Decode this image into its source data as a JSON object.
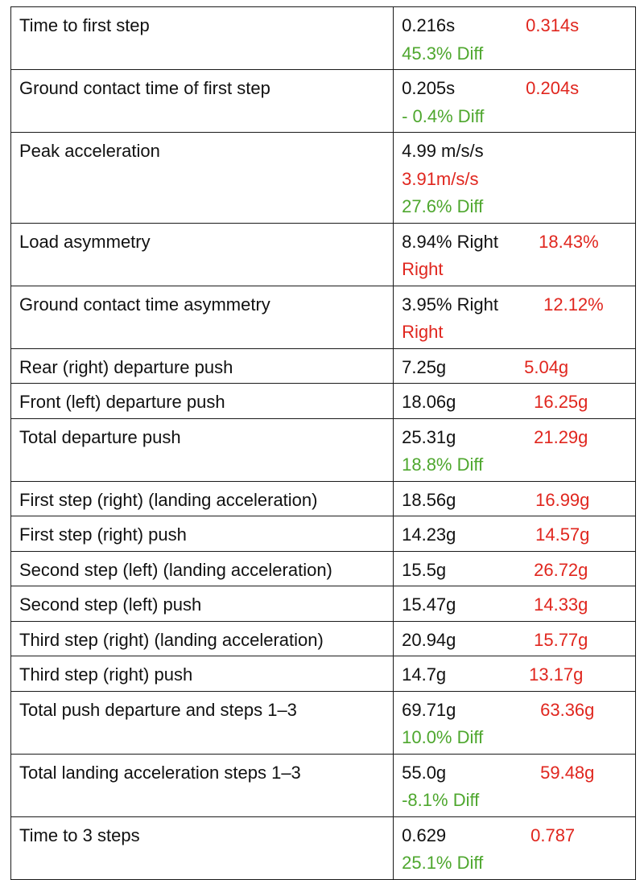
{
  "colors": {
    "comparison": "#e0261e",
    "difference": "#4ea72e",
    "text": "#111111"
  },
  "rows": [
    {
      "label": "Time to first step",
      "value_a": "0.216s",
      "value_b": "0.314s",
      "diff": "45.3% Diff"
    },
    {
      "label": "Ground contact time of first step",
      "value_a": "0.205s",
      "value_b": "0.204s",
      "diff": "- 0.4% Diff"
    },
    {
      "label": "Peak acceleration",
      "value_a": "4.99 m/s/s",
      "value_b": "3.91m/s/s",
      "diff": "27.6% Diff"
    },
    {
      "label": "Load asymmetry",
      "value_a": "8.94% Right",
      "value_b": "18.43%",
      "value_b_wrap": "Right"
    },
    {
      "label": "Ground contact time asymmetry",
      "value_a": "3.95% Right",
      "value_b": "12.12%",
      "value_b_wrap": "Right"
    },
    {
      "label": "Rear (right) departure push",
      "value_a": "7.25g",
      "value_b": "5.04g"
    },
    {
      "label": "Front (left) departure push",
      "value_a": "18.06g",
      "value_b": "16.25g"
    },
    {
      "label": "Total departure push",
      "value_a": "25.31g",
      "value_b": "21.29g",
      "diff": "18.8% Diff"
    },
    {
      "label": "First step (right) (landing acceleration)",
      "value_a": "18.56g",
      "value_b": "16.99g"
    },
    {
      "label": "First step (right) push",
      "value_a": "14.23g",
      "value_b": "14.57g"
    },
    {
      "label": "Second step (left) (landing acceleration)",
      "value_a": "15.5g",
      "value_b": "26.72g"
    },
    {
      "label": "Second step (left) push",
      "value_a": "15.47g",
      "value_b": "14.33g"
    },
    {
      "label": "Third step (right) (landing acceleration)",
      "value_a": "20.94g",
      "value_b": "15.77g"
    },
    {
      "label": "Third step (right) push",
      "value_a": "14.7g",
      "value_b": "13.17g"
    },
    {
      "label": "Total push departure and steps 1–3",
      "value_a": "69.71g",
      "value_b": "63.36g",
      "diff": "10.0% Diff"
    },
    {
      "label": "Total landing acceleration steps 1–3",
      "value_a": "55.0g",
      "value_b": "59.48g",
      "diff": "-8.1% Diff"
    },
    {
      "label": "Time to 3 steps",
      "value_a": "0.629",
      "value_b": "0.787",
      "diff": "25.1% Diff"
    }
  ]
}
